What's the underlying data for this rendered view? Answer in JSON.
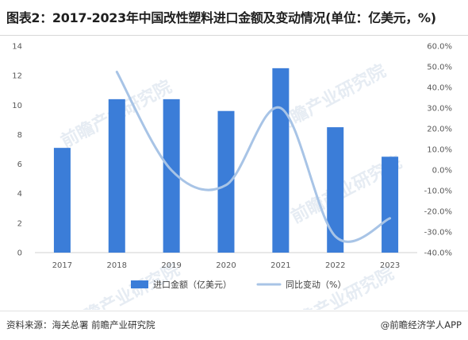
{
  "title": "图表2：2017-2023年中国改性塑料进口金额及变动情况(单位：亿美元，%)",
  "footer": {
    "source": "资料来源：海关总署 前瞻产业研究院",
    "brand": "@前瞻经济学人APP"
  },
  "watermark": "前瞻产业研究院",
  "colors": {
    "bar": "#3b7dd8",
    "line": "#a8c4e6",
    "tick_text": "#595959"
  },
  "chart_data": {
    "type": "bar",
    "title": "图表2：2017-2023年中国改性塑料进口金额及变动情况(单位：亿美元，%)",
    "categories": [
      "2017",
      "2018",
      "2019",
      "2020",
      "2021",
      "2022",
      "2023"
    ],
    "series": [
      {
        "name": "进口金额（亿美元）",
        "type": "bar",
        "axis": "left",
        "values": [
          7.1,
          10.4,
          10.4,
          9.6,
          12.5,
          8.5,
          6.5
        ]
      },
      {
        "name": "同比变动（%）",
        "type": "line",
        "axis": "right",
        "smooth": true,
        "values": [
          null,
          47.5,
          -0.1,
          -7.3,
          30.0,
          -32.1,
          -23.4
        ]
      }
    ],
    "y_left": {
      "lim": [
        0,
        14
      ],
      "ticks": [
        "0",
        "2",
        "4",
        "6",
        "8",
        "10",
        "12",
        "14"
      ]
    },
    "y_right": {
      "lim": [
        -40,
        60
      ],
      "ticks": [
        "-40.0%",
        "-30.0%",
        "-20.0%",
        "-10.0%",
        "0.0%",
        "10.0%",
        "20.0%",
        "30.0%",
        "40.0%",
        "50.0%",
        "60.0%"
      ]
    },
    "legend": "bottom",
    "grid": false
  }
}
